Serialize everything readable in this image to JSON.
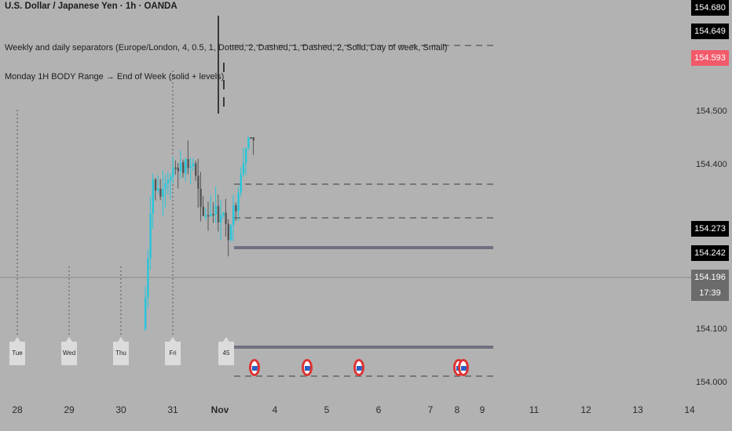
{
  "legend": {
    "symbol_title": "U.S. Dollar / Japanese Yen · 1h · OANDA",
    "indicator_1": "Weekly and daily separators (Europe/London, 4, 0.5, 1, Dotted, 2, Dashed, 1, Dashed, 2, Solid, Day of week, Small)",
    "indicator_2": "Monday 1H BODY Range → End of Week (solid + levels)"
  },
  "price_scale": {
    "ticks": [
      "154.500",
      "154.400",
      "154.100",
      "154.000"
    ],
    "labels": [
      {
        "text": "154.680",
        "bg": "#000000",
        "fg": "#ffffff"
      },
      {
        "text": "154.649",
        "bg": "#000000",
        "fg": "#ffffff"
      },
      {
        "text": "154.593",
        "bg": "#f25a6a",
        "fg": "#ffffff"
      },
      {
        "text": "154.273",
        "bg": "#000000",
        "fg": "#ffffff"
      },
      {
        "text": "154.242",
        "bg": "#000000",
        "fg": "#ffffff"
      },
      {
        "text": "154.196",
        "bg": "#6b6b6b",
        "fg": "#ffffff"
      },
      {
        "text": "17:39",
        "bg": "#6b6b6b",
        "fg": "#ffffff"
      }
    ]
  },
  "time_scale": {
    "ticks": [
      "28",
      "29",
      "30",
      "31",
      "Nov",
      "4",
      "5",
      "6",
      "7",
      "8",
      "9",
      "11",
      "12",
      "13",
      "14"
    ]
  },
  "day_labels": [
    "Tue",
    "Wed",
    "Thu",
    "Fri",
    "45"
  ],
  "colors": {
    "background": "#b2b2b2",
    "candle_up": "#26c6da",
    "candle_down": "#555555",
    "range_line": "#6f7080",
    "level_line": "#777777",
    "crosshair": "#8a8a8a"
  },
  "icons": [
    "us-flag-event-icon"
  ]
}
